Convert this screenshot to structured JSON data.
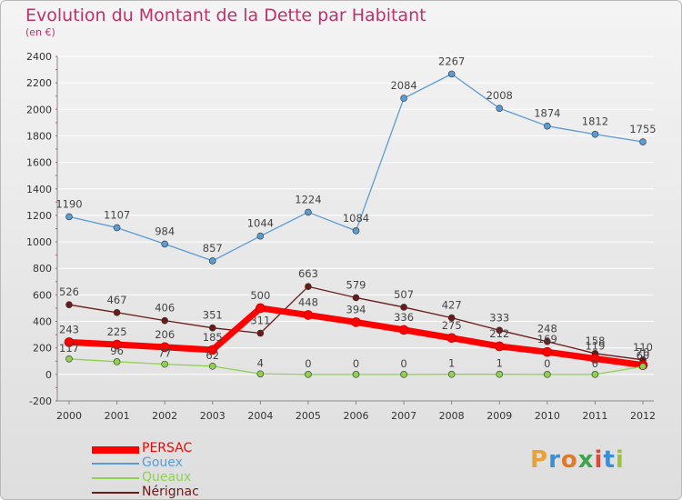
{
  "chart_data": {
    "type": "line",
    "title": "Evolution du Montant de la Dette par Habitant",
    "subtitle": "(en €)",
    "categories": [
      "2000",
      "2001",
      "2002",
      "2003",
      "2004",
      "2005",
      "2006",
      "2007",
      "2008",
      "2009",
      "2010",
      "2011",
      "2012"
    ],
    "ylim": [
      -200,
      2400
    ],
    "yticks": [
      -200,
      0,
      200,
      400,
      600,
      800,
      1000,
      1200,
      1400,
      1600,
      1800,
      2000,
      2200,
      2400
    ],
    "grid": "horizontal",
    "legend_position": "bottom-left",
    "series": [
      {
        "name": "Gouex",
        "color": "#5b9bd5",
        "values": [
          1190,
          1107,
          984,
          857,
          1044,
          1224,
          1084,
          2084,
          2267,
          2008,
          1874,
          1812,
          1755
        ]
      },
      {
        "name": "Nérignac",
        "color": "#6b1a1a",
        "values": [
          526,
          467,
          406,
          351,
          311,
          663,
          579,
          507,
          427,
          333,
          248,
          158,
          110
        ]
      },
      {
        "name": "PERSAC",
        "color": "#ff0000",
        "values": [
          243,
          225,
          206,
          185,
          500,
          448,
          394,
          336,
          275,
          212,
          169,
          119,
          70
        ]
      },
      {
        "name": "Queaux",
        "color": "#8fd14f",
        "values": [
          117,
          96,
          77,
          62,
          4,
          0,
          0,
          0,
          1,
          1,
          0,
          0,
          60
        ]
      }
    ],
    "legend_order": [
      "PERSAC",
      "Gouex",
      "Queaux",
      "Nérignac"
    ]
  },
  "logo": {
    "text": "Proxiti"
  }
}
